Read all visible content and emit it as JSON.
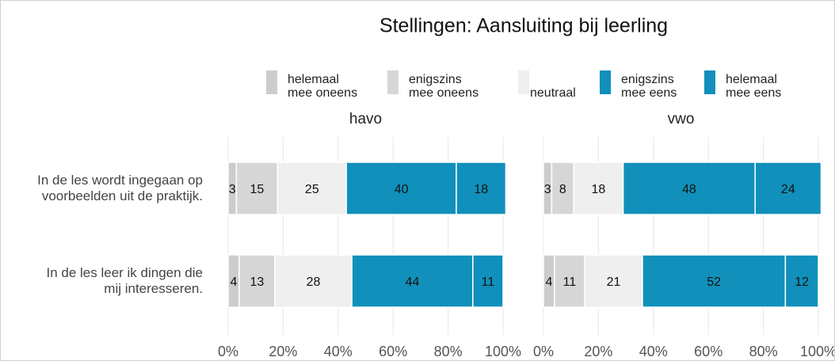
{
  "chart_data": {
    "type": "bar",
    "orientation": "horizontal",
    "stacked": true,
    "title": "Stellingen: Aansluiting bij leerling",
    "legend": "top",
    "facets": [
      "havo",
      "vwo"
    ],
    "categories": [
      "In de les wordt ingegaan op\nvoorbeelden uit de praktijk.",
      "In de les leer ik dingen die\nmij interesseren."
    ],
    "series": [
      {
        "name": "helemaal\nmee oneens",
        "color": "#cccccc",
        "values": [
          [
            3,
            4
          ],
          [
            3,
            4
          ]
        ]
      },
      {
        "name": "enigszins\nmee oneens",
        "color": "#d6d6d6",
        "values": [
          [
            15,
            13
          ],
          [
            8,
            11
          ]
        ]
      },
      {
        "name": "neutraal",
        "color": "#efefef",
        "values": [
          [
            25,
            28
          ],
          [
            18,
            21
          ]
        ]
      },
      {
        "name": "enigszins\nmee eens",
        "color": "#1190bb",
        "values": [
          [
            40,
            44
          ],
          [
            48,
            52
          ]
        ]
      },
      {
        "name": "helemaal\nmee eens",
        "color": "#1190bb",
        "values": [
          [
            18,
            11
          ],
          [
            24,
            12
          ]
        ]
      }
    ],
    "xlim": [
      0,
      100
    ],
    "xticks": [
      {
        "value": 0,
        "label": "0%"
      },
      {
        "value": 20,
        "label": "20%"
      },
      {
        "value": 40,
        "label": "40%"
      },
      {
        "value": 60,
        "label": "60%"
      },
      {
        "value": 80,
        "label": "80%"
      },
      {
        "value": 100,
        "label": "100%"
      }
    ],
    "grid": true
  }
}
